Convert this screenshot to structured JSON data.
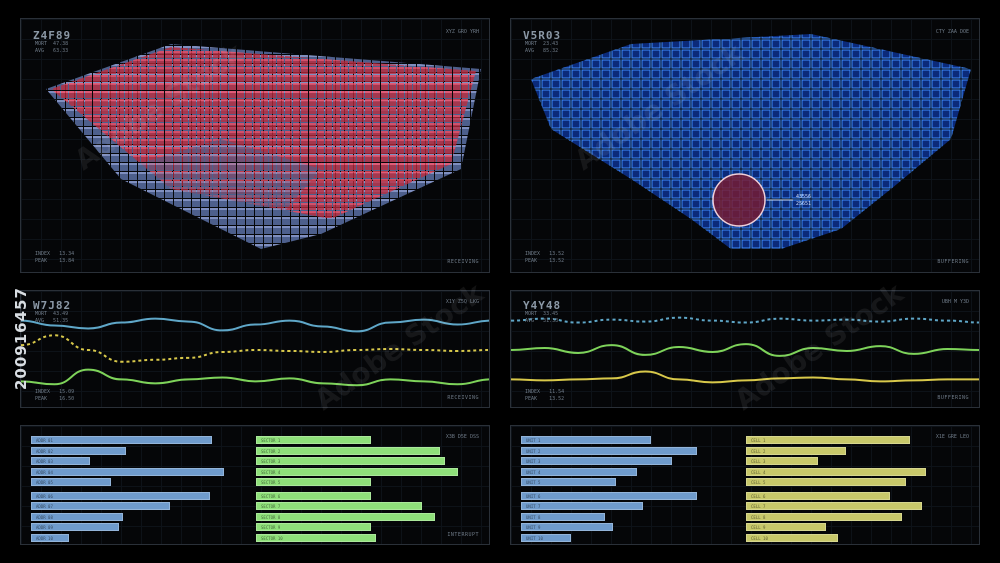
{
  "watermark": {
    "id": "200916457",
    "brand": "Adobe Stock"
  },
  "panels": {
    "tl": {
      "title": "Z4F89",
      "stat1": "MORT  47.38\nAVG   63.33",
      "corner": "XYZ\nGRO\nYRH",
      "bottom": "INDEX   13.34\nPEAK    13.84",
      "status": "RECEIVING",
      "accent": "#e0303c"
    },
    "tr": {
      "title": "V5R03",
      "stat1": "MORT  23.43\nAVG   85.32",
      "corner": "CTY\nZAA\nDOE",
      "bottom": "INDEX   13.52\nPEAK    13.52",
      "status": "BUFFERING",
      "accent": "#2f7fff",
      "callout": "43556\n25651"
    },
    "ml": {
      "title": "W7J82",
      "stat1": "MORT  43.49\nAVG   51.35",
      "corner": "X1Y\nZ5Q\nLKG",
      "bottom": "INDEX   15.09\nPEAK    16.50",
      "status": "RECEIVING"
    },
    "mr": {
      "title": "Y4Y48",
      "stat1": "MORT  33.45\nAVG   31.33",
      "corner": "UBH\nM\nY3D",
      "bottom": "INDEX   11.54\nPEAK    13.52",
      "status": "BUFFERING"
    },
    "bl": {
      "corner": "X3B\nD5E\nDSS",
      "status": "INTERRUPT"
    },
    "br": {
      "corner": "X1E\nGRE\nLEO",
      "status": ""
    }
  },
  "colors": {
    "cyan": "#5fa7c8",
    "yellow": "#d8c84a",
    "green": "#7ed35a",
    "blueBar": "#6f9bcc",
    "greenBar": "#8fe07a",
    "yellowBar": "#c8c86a"
  },
  "line_series": {
    "ml": [
      {
        "name": "cyan",
        "style": "solid",
        "y": [
          0.2,
          0.25,
          0.28,
          0.22,
          0.18,
          0.21,
          0.3,
          0.24,
          0.2,
          0.26,
          0.31,
          0.22,
          0.19,
          0.24,
          0.2
        ]
      },
      {
        "name": "yellow",
        "style": "dotted",
        "y": [
          0.45,
          0.35,
          0.5,
          0.62,
          0.6,
          0.58,
          0.52,
          0.5,
          0.51,
          0.52,
          0.5,
          0.49,
          0.5,
          0.51,
          0.5
        ]
      },
      {
        "name": "green",
        "style": "solid",
        "y": [
          0.82,
          0.85,
          0.7,
          0.8,
          0.84,
          0.8,
          0.78,
          0.82,
          0.79,
          0.84,
          0.86,
          0.8,
          0.82,
          0.85,
          0.8
        ]
      }
    ],
    "mr": [
      {
        "name": "cyan",
        "style": "dotted",
        "y": [
          0.2,
          0.18,
          0.22,
          0.19,
          0.21,
          0.17,
          0.2,
          0.22,
          0.18,
          0.2,
          0.19,
          0.21,
          0.18,
          0.2,
          0.22
        ]
      },
      {
        "name": "green",
        "style": "solid",
        "y": [
          0.5,
          0.48,
          0.53,
          0.45,
          0.55,
          0.47,
          0.52,
          0.44,
          0.56,
          0.48,
          0.51,
          0.46,
          0.54,
          0.49,
          0.5
        ]
      },
      {
        "name": "yellow",
        "style": "solid",
        "y": [
          0.8,
          0.81,
          0.8,
          0.79,
          0.72,
          0.8,
          0.83,
          0.81,
          0.79,
          0.78,
          0.8,
          0.82,
          0.81,
          0.8,
          0.8
        ]
      }
    ]
  },
  "bars": {
    "bl_left": {
      "labels": [
        "ADDR 01",
        "ADDR 02",
        "ADDR 03",
        "ADDR 04",
        "ADDR 05",
        "ADDR 06",
        "ADDR 07",
        "ADDR 08",
        "ADDR 09",
        "ADDR 10"
      ],
      "values": [
        0.86,
        0.45,
        0.28,
        0.92,
        0.38,
        0.85,
        0.66,
        0.44,
        0.42,
        0.18
      ]
    },
    "bl_right": {
      "labels": [
        "SECTOR 1",
        "SECTOR 2",
        "SECTOR 3",
        "SECTOR 4",
        "SECTOR 5",
        "SECTOR 6",
        "SECTOR 7",
        "SECTOR 8",
        "SECTOR 9",
        "SECTOR 10"
      ],
      "values": [
        0.5,
        0.8,
        0.82,
        0.88,
        0.5,
        0.5,
        0.72,
        0.78,
        0.5,
        0.52
      ]
    },
    "br_left": {
      "labels": [
        "UNIT 1",
        "UNIT 2",
        "UNIT 3",
        "UNIT 4",
        "UNIT 5",
        "UNIT 6",
        "UNIT 7",
        "UNIT 8",
        "UNIT 9",
        "UNIT 10"
      ],
      "values": [
        0.62,
        0.84,
        0.72,
        0.55,
        0.45,
        0.84,
        0.58,
        0.4,
        0.44,
        0.24
      ]
    },
    "br_right": {
      "labels": [
        "CELL 1",
        "CELL 2",
        "CELL 3",
        "CELL 4",
        "CELL 5",
        "CELL 6",
        "CELL 7",
        "CELL 8",
        "CELL 9",
        "CELL 10"
      ],
      "values": [
        0.82,
        0.5,
        0.36,
        0.9,
        0.8,
        0.72,
        0.88,
        0.78,
        0.4,
        0.46
      ]
    }
  }
}
